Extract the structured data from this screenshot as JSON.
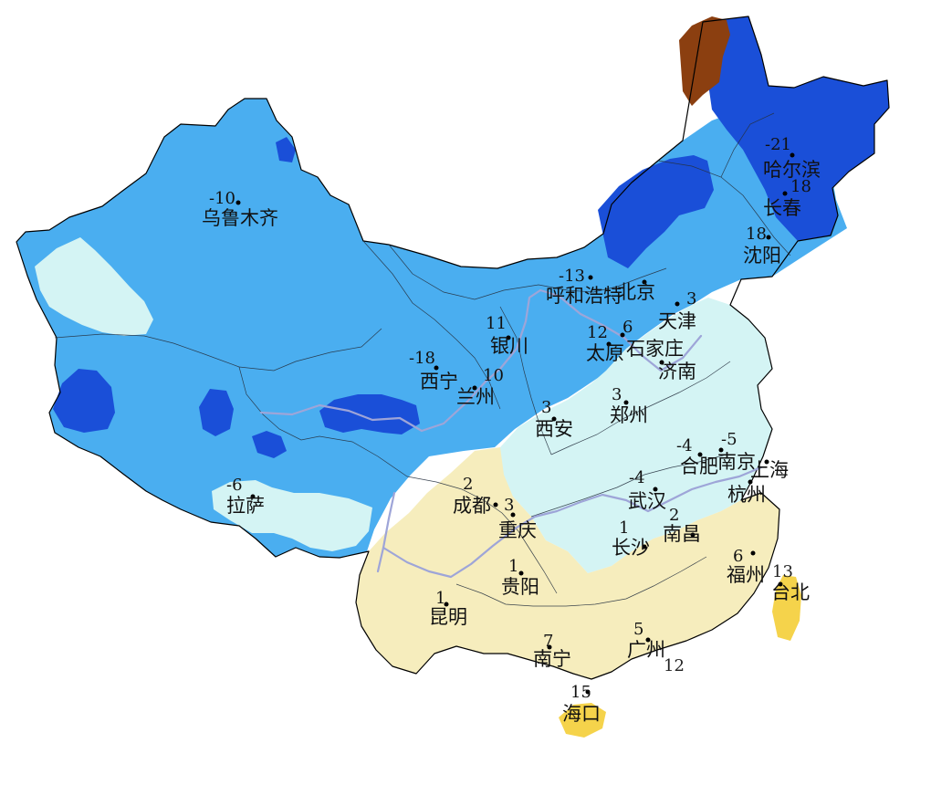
{
  "cities": [
    {
      "name": "乌鲁木齐",
      "temp": "-10"
    },
    {
      "name": "哈尔滨",
      "temp": "-21"
    },
    {
      "name": "长春",
      "temp": "18"
    },
    {
      "name": "沈阳",
      "temp": "18"
    },
    {
      "name": "呼和浩特",
      "temp": "-13"
    },
    {
      "name": "北京",
      "temp": ""
    },
    {
      "name": "天津",
      "temp": "3"
    },
    {
      "name": "银川",
      "temp": "11"
    },
    {
      "name": "太原",
      "temp": "12"
    },
    {
      "name": "石家庄",
      "temp": "6"
    },
    {
      "name": "西宁",
      "temp": "-18"
    },
    {
      "name": "兰州",
      "temp": "10"
    },
    {
      "name": "济南",
      "temp": ""
    },
    {
      "name": "郑州",
      "temp": "3"
    },
    {
      "name": "西安",
      "temp": "3"
    },
    {
      "name": "合肥",
      "temp": "-4"
    },
    {
      "name": "南京",
      "temp": "-5"
    },
    {
      "name": "上海",
      "temp": ""
    },
    {
      "name": "杭州",
      "temp": ""
    },
    {
      "name": "成都",
      "temp": "2"
    },
    {
      "name": "重庆",
      "temp": "3"
    },
    {
      "name": "武汉",
      "temp": "-4"
    },
    {
      "name": "南昌",
      "temp": "2"
    },
    {
      "name": "长沙",
      "temp": "1"
    },
    {
      "name": "拉萨",
      "temp": "-6"
    },
    {
      "name": "贵阳",
      "temp": "1"
    },
    {
      "name": "福州",
      "temp": "6"
    },
    {
      "name": "台北",
      "temp": "13"
    },
    {
      "name": "昆明",
      "temp": "1"
    },
    {
      "name": "南宁",
      "temp": "7"
    },
    {
      "name": "广州",
      "temp": "5"
    },
    {
      "name": "海口",
      "temp": "15"
    }
  ],
  "extra_labels": [
    "12"
  ]
}
